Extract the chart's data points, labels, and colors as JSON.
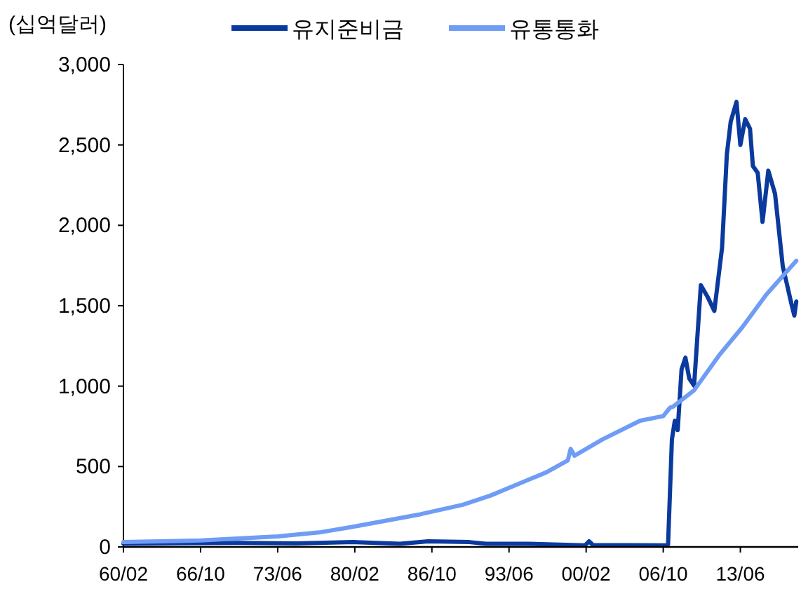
{
  "chart_data": {
    "type": "line",
    "ylabel": "(십억달러)",
    "legend": "top",
    "xlim": [
      "1960-02",
      "2018-06"
    ],
    "xticks": [
      {
        "value": "1960-02",
        "label": "60/02"
      },
      {
        "value": "1966-10",
        "label": "66/10"
      },
      {
        "value": "1973-06",
        "label": "73/06"
      },
      {
        "value": "1980-02",
        "label": "80/02"
      },
      {
        "value": "1986-10",
        "label": "86/10"
      },
      {
        "value": "1993-06",
        "label": "93/06"
      },
      {
        "value": "2000-02",
        "label": "00/02"
      },
      {
        "value": "2006-10",
        "label": "06/10"
      },
      {
        "value": "2013-06",
        "label": "13/06"
      }
    ],
    "ylim": [
      0,
      3000
    ],
    "yticks": [
      {
        "value": 0,
        "label": "0"
      },
      {
        "value": 500,
        "label": "500"
      },
      {
        "value": 1000,
        "label": "1,000"
      },
      {
        "value": 1500,
        "label": "1,500"
      },
      {
        "value": 2000,
        "label": "2,000"
      },
      {
        "value": 2500,
        "label": "2,500"
      },
      {
        "value": 3000,
        "label": "3,000"
      }
    ],
    "series": [
      {
        "name": "유지준비금",
        "color": "#0b3a9e",
        "x": [
          "1960-02",
          "1970-01",
          "1975-01",
          "1980-01",
          "1984-01",
          "1986-06",
          "1990-01",
          "1991-06",
          "1995-01",
          "2000-01",
          "2000-05",
          "2000-09",
          "2007-02",
          "2007-03",
          "2007-07",
          "2007-10",
          "2008-01",
          "2008-05",
          "2008-09",
          "2009-01",
          "2009-06",
          "2010-01",
          "2010-08",
          "2011-03",
          "2011-11",
          "2012-04",
          "2012-08",
          "2013-02",
          "2013-06",
          "2013-11",
          "2014-04",
          "2014-07",
          "2014-12",
          "2015-05",
          "2015-11",
          "2016-06",
          "2017-02",
          "2017-06",
          "2017-11",
          "2018-02",
          "2018-04"
        ],
        "values": [
          20,
          25,
          22,
          30,
          20,
          35,
          30,
          20,
          20,
          10,
          35,
          12,
          10,
          15,
          669,
          785,
          727,
          1105,
          1177,
          1047,
          1003,
          1628,
          1555,
          1468,
          1860,
          2442,
          2645,
          2767,
          2500,
          2660,
          2601,
          2369,
          2326,
          2021,
          2340,
          2195,
          1744,
          1642,
          1511,
          1439,
          1526
        ]
      },
      {
        "name": "유통통화",
        "color": "#6f9cf5",
        "x": [
          "1960-02",
          "1966-10",
          "1973-06",
          "1977-01",
          "1979-09",
          "1985-10",
          "1989-06",
          "1991-11",
          "1994-04",
          "1996-09",
          "1998-07",
          "1998-10",
          "1999-02",
          "2001-07",
          "2004-10",
          "2006-10",
          "2007-05",
          "2007-08",
          "2009-06",
          "2011-08",
          "2013-08",
          "2015-09",
          "2018-04"
        ],
        "values": [
          30,
          40,
          65,
          90,
          122,
          203,
          262,
          320,
          392,
          465,
          538,
          610,
          567,
          669,
          785,
          814,
          866,
          872,
          974,
          1192,
          1366,
          1570,
          1779
        ]
      }
    ]
  }
}
